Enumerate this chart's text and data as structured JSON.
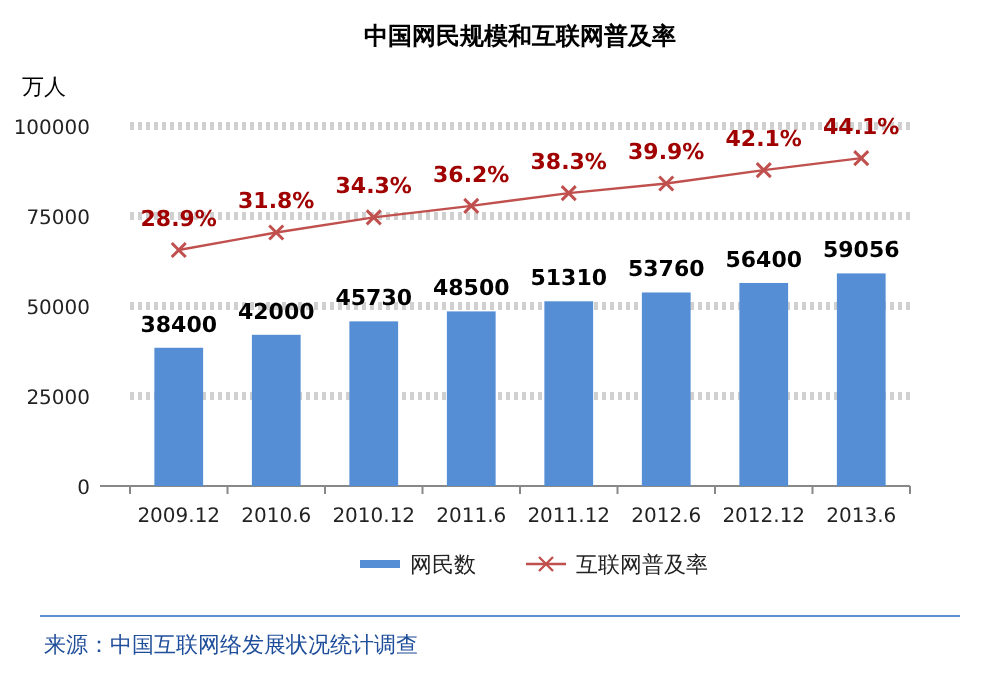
{
  "chart_data": {
    "type": "bar",
    "title": "中国网民规模和互联网普及率",
    "ylabel": "万人",
    "categories": [
      "2009.12",
      "2010.6",
      "2010.12",
      "2011.6",
      "2011.12",
      "2012.6",
      "2012.12",
      "2013.6"
    ],
    "series": [
      {
        "name": "网民数",
        "color": "#558ed5",
        "values": [
          38400,
          42000,
          45730,
          48500,
          51310,
          53760,
          56400,
          59056
        ]
      },
      {
        "name": "互联网普及率",
        "type": "line",
        "axis": "y2",
        "color": "#c0504d",
        "marker": "cross",
        "values": [
          28.9,
          31.8,
          34.3,
          36.2,
          38.3,
          39.9,
          42.1,
          44.1
        ],
        "value_labels": [
          "28.9%",
          "31.8%",
          "34.3%",
          "36.2%",
          "38.3%",
          "39.9%",
          "42.1%",
          "44.1%"
        ]
      }
    ],
    "ylim": [
      0,
      100000
    ],
    "yticks": [
      0,
      25000,
      50000,
      75000,
      100000
    ],
    "y2lim": [
      -10.1,
      49.4
    ],
    "grid": "y",
    "legend": "bottom",
    "data_labels": true,
    "annotations": [
      "来源：中国互联网络发展状况统计调查"
    ]
  }
}
